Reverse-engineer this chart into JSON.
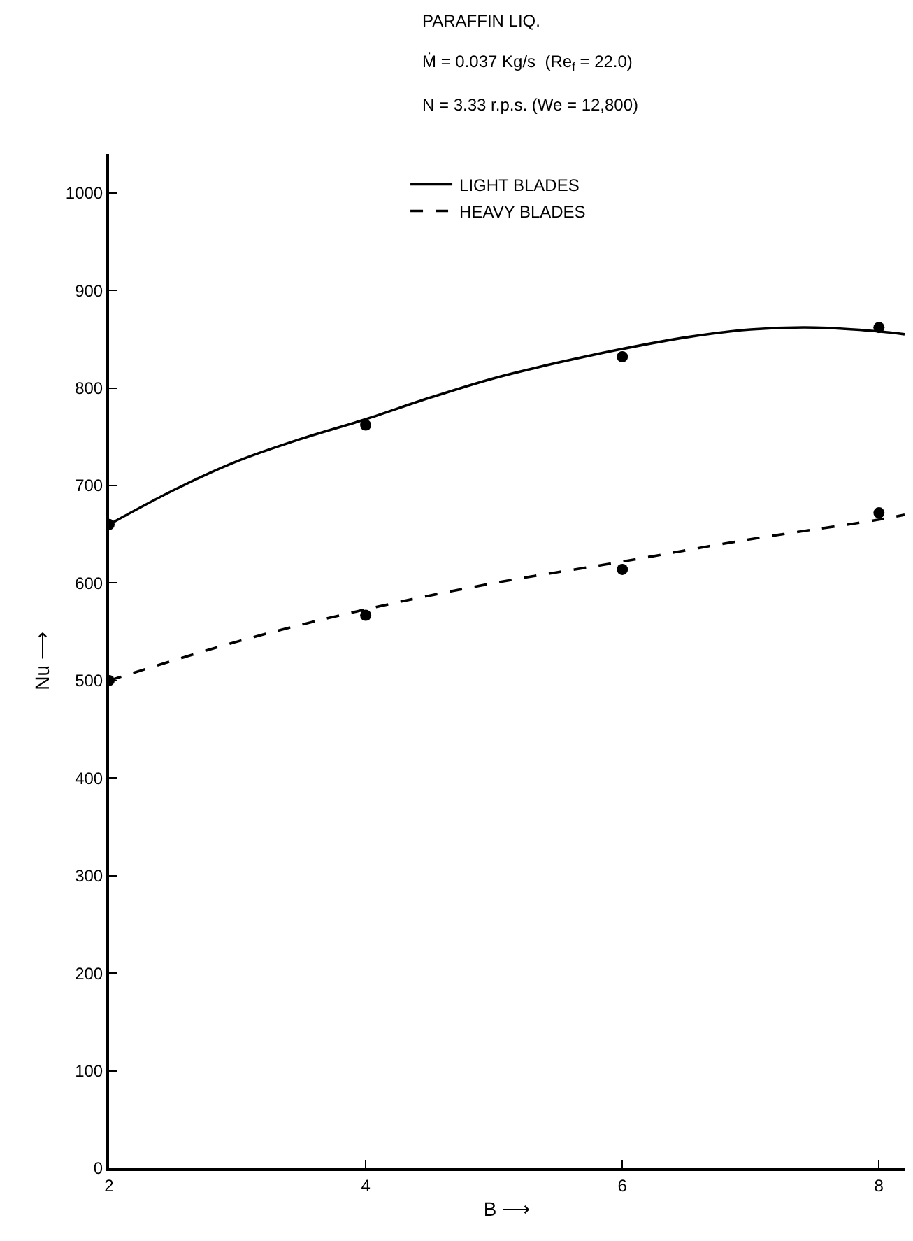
{
  "chart_data": {
    "type": "scatter",
    "xlabel": "B ⟶",
    "ylabel": "Nu ⟶",
    "annotations": [
      "PARAFFIN LIQ.",
      "Ṁ = 0.037 Kg/s  (Re$_{f}$ = 22.0)",
      "N = 3.33 r.p.s. (We = 12,800)"
    ],
    "series": [
      {
        "type": "line",
        "name": "LIGHT BLADES",
        "color": "#000000",
        "line_style": "solid",
        "marker": "none",
        "x": [
          2,
          2.5,
          3,
          3.5,
          4,
          4.5,
          5,
          5.5,
          6,
          6.5,
          7,
          7.5,
          8,
          8.2
        ],
        "values": [
          660,
          695,
          725,
          748,
          768,
          790,
          810,
          826,
          840,
          852,
          860,
          862,
          858,
          855
        ]
      },
      {
        "type": "line",
        "name": "HEAVY BLADES",
        "color": "#000000",
        "line_style": "dashed",
        "marker": "none",
        "x": [
          2,
          3,
          4,
          5,
          6,
          7,
          8,
          8.2
        ],
        "values": [
          500,
          540,
          573,
          600,
          622,
          645,
          665,
          670
        ]
      },
      {
        "color": "#000000",
        "marker": "circle",
        "x": [
          2,
          4,
          6,
          8
        ],
        "values": [
          660,
          762,
          832,
          862
        ]
      },
      {
        "color": "#000000",
        "marker": "circle",
        "x": [
          2,
          4,
          6,
          8
        ],
        "values": [
          500,
          567,
          614,
          672
        ]
      }
    ],
    "xlim": [
      2,
      8.2
    ],
    "xticks": [
      2,
      4,
      6,
      8
    ],
    "ylim": [
      0,
      1040
    ],
    "yticks": [
      0,
      100,
      200,
      300,
      400,
      500,
      600,
      700,
      800,
      900,
      1000
    ],
    "legend": "top right"
  }
}
